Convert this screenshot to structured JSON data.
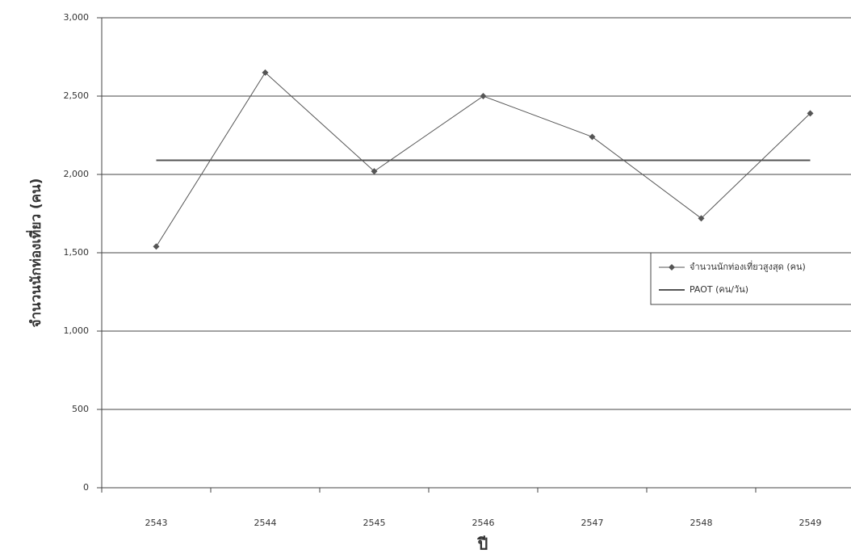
{
  "chart_data": {
    "type": "line",
    "x_label": "ปี",
    "y_label": "จำนวนนักท่องเที่ยว (คน)",
    "categories": [
      "2543",
      "2544",
      "2545",
      "2546",
      "2547",
      "2548",
      "2549"
    ],
    "series": [
      {
        "name": "จำนวนนักท่องเที่ยวสูงสุด (คน)",
        "color": "#555555",
        "marker": "diamond",
        "values": [
          1540,
          2650,
          2020,
          2500,
          2240,
          1720,
          2390
        ]
      },
      {
        "name": "PAOT (คน/วัน)",
        "color": "#555555",
        "marker": "none",
        "values": [
          2090,
          2090,
          2090,
          2090,
          2090,
          2090,
          2090
        ]
      }
    ],
    "ylim": [
      0,
      3000
    ],
    "yticks": [
      0,
      {
        "value": 500,
        "label": "500"
      },
      {
        "value": 1000,
        "label": "1,000"
      },
      {
        "value": 1500,
        "label": "1,500"
      },
      {
        "value": 2000,
        "label": "2,000"
      },
      {
        "value": 2500,
        "label": "2,500"
      },
      {
        "value": 3000,
        "label": "3,000"
      }
    ],
    "grid": true,
    "legend": "right"
  }
}
